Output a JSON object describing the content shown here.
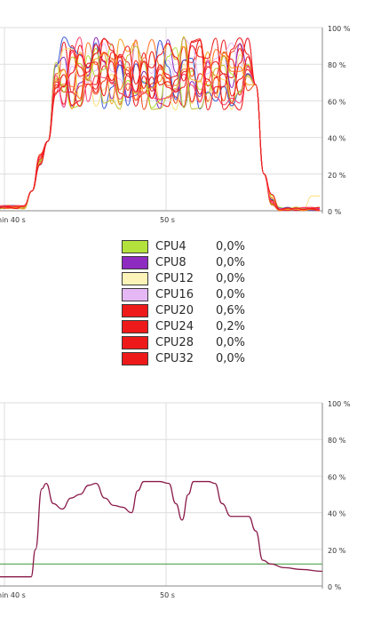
{
  "cpu_history": {
    "y_ticks": [
      "100 %",
      "80 %",
      "60 %",
      "40 %",
      "20 %",
      "0 %"
    ],
    "x_ticks": [
      "nin 40 s",
      "50 s"
    ]
  },
  "cpu_legend": [
    {
      "name": "CPU4",
      "value": "0,0%",
      "color": "#b3e23c"
    },
    {
      "name": "CPU8",
      "value": "0,0%",
      "color": "#8e2bc0"
    },
    {
      "name": "CPU12",
      "value": "0,0%",
      "color": "#fbf3b8"
    },
    {
      "name": "CPU16",
      "value": "0,0%",
      "color": "#e5b8f5"
    },
    {
      "name": "CPU20",
      "value": "0,6%",
      "color": "#ee1a1a"
    },
    {
      "name": "CPU24",
      "value": "0,2%",
      "color": "#ee1a1a"
    },
    {
      "name": "CPU28",
      "value": "0,0%",
      "color": "#ee1a1a"
    },
    {
      "name": "CPU32",
      "value": "0,0%",
      "color": "#ee1a1a"
    }
  ],
  "memory_history": {
    "y_ticks": [
      "100 %",
      "80 %",
      "60 %",
      "40 %",
      "20 %",
      "0 %"
    ],
    "x_ticks": [
      "nin 40 s",
      "50 s"
    ],
    "memory_color": "#8a1a4a",
    "swap_color": "#3a9a3a"
  }
}
